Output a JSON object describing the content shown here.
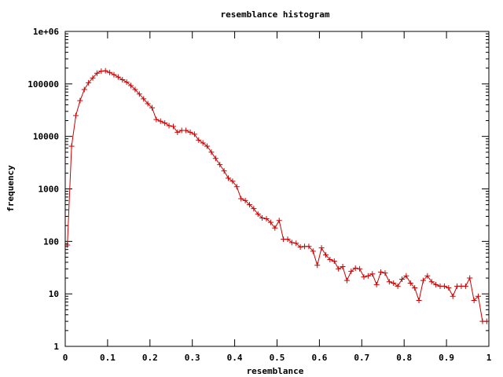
{
  "chart_data": {
    "type": "line",
    "title": "resemblance histogram",
    "xlabel": "resemblance",
    "ylabel": "frequency",
    "xlim": [
      0,
      1
    ],
    "ylim": [
      1,
      1000000
    ],
    "y_scale": "log",
    "grid": false,
    "x_ticks": [
      "0",
      "0.1",
      "0.2",
      "0.3",
      "0.4",
      "0.5",
      "0.6",
      "0.7",
      "0.8",
      "0.9",
      "1"
    ],
    "y_ticks": [
      "1",
      "10",
      "100",
      "1000",
      "10000",
      "100000",
      "1e+06"
    ],
    "series": [
      {
        "color": "#cc0000",
        "marker": "plus",
        "x": [
          0.005,
          0.015,
          0.025,
          0.035,
          0.045,
          0.055,
          0.065,
          0.075,
          0.085,
          0.095,
          0.105,
          0.115,
          0.125,
          0.135,
          0.145,
          0.155,
          0.165,
          0.175,
          0.185,
          0.195,
          0.205,
          0.215,
          0.225,
          0.235,
          0.245,
          0.255,
          0.265,
          0.275,
          0.285,
          0.295,
          0.305,
          0.315,
          0.325,
          0.335,
          0.345,
          0.355,
          0.365,
          0.375,
          0.385,
          0.395,
          0.405,
          0.415,
          0.425,
          0.435,
          0.445,
          0.455,
          0.465,
          0.475,
          0.485,
          0.495,
          0.505,
          0.515,
          0.525,
          0.535,
          0.545,
          0.555,
          0.565,
          0.575,
          0.585,
          0.595,
          0.605,
          0.615,
          0.625,
          0.635,
          0.645,
          0.655,
          0.665,
          0.675,
          0.685,
          0.695,
          0.705,
          0.715,
          0.725,
          0.735,
          0.745,
          0.755,
          0.765,
          0.775,
          0.785,
          0.795,
          0.805,
          0.815,
          0.825,
          0.835,
          0.845,
          0.855,
          0.865,
          0.875,
          0.885,
          0.895,
          0.905,
          0.915,
          0.925,
          0.935,
          0.945,
          0.955,
          0.965,
          0.975,
          0.985,
          0.995
        ],
        "y": [
          85,
          6500,
          25000,
          48000,
          78000,
          105000,
          130000,
          160000,
          175000,
          178000,
          165000,
          150000,
          135000,
          120000,
          108000,
          93000,
          78000,
          64000,
          52000,
          42000,
          35000,
          21000,
          19500,
          18000,
          16000,
          15500,
          12000,
          13000,
          13000,
          12000,
          11000,
          8500,
          7500,
          6500,
          5000,
          3800,
          2900,
          2200,
          1600,
          1400,
          1100,
          650,
          600,
          500,
          420,
          330,
          280,
          270,
          230,
          180,
          250,
          110,
          110,
          95,
          92,
          78,
          80,
          80,
          65,
          35,
          75,
          55,
          45,
          42,
          30,
          33,
          18,
          27,
          31,
          30,
          21,
          22,
          24,
          15,
          26,
          25,
          17,
          16,
          14,
          19,
          22,
          16,
          13,
          7.5,
          18,
          22,
          17,
          15,
          14,
          14,
          13,
          9,
          14,
          14,
          14,
          20,
          7.5,
          9,
          3,
          3
        ]
      }
    ]
  }
}
